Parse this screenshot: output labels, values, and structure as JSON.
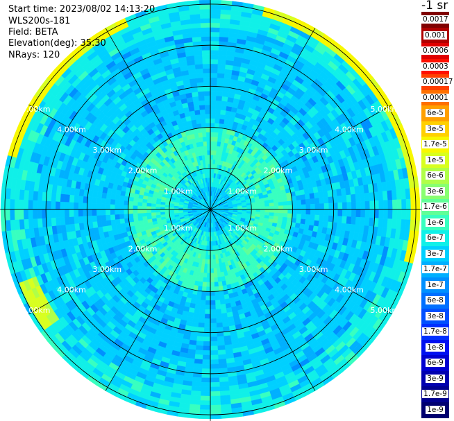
{
  "header": {
    "start_time": "Start time: 2023/08/02 14:13:20",
    "device": "WLS200s-181",
    "field": "Field: BETA",
    "elevation": "Elevation(deg): 35.30",
    "nrays": "NRays: 120"
  },
  "colorbar": {
    "unit": "-1 sr",
    "entries": [
      {
        "label": "0.0017",
        "color": "#800000"
      },
      {
        "label": "0.001",
        "color": "#b00000"
      },
      {
        "label": "0.0006",
        "color": "#e00000"
      },
      {
        "label": "0.0003",
        "color": "#ff1000"
      },
      {
        "label": "0.00017",
        "color": "#ff4000"
      },
      {
        "label": "0.0001",
        "color": "#ff7000"
      },
      {
        "label": "6e-5",
        "color": "#ffa000"
      },
      {
        "label": "3e-5",
        "color": "#ffd000"
      },
      {
        "label": "1.7e-5",
        "color": "#f8f800"
      },
      {
        "label": "1e-5",
        "color": "#d8ff20"
      },
      {
        "label": "6e-6",
        "color": "#b0ff48"
      },
      {
        "label": "3e-6",
        "color": "#88ff70"
      },
      {
        "label": "1.7e-6",
        "color": "#60ff98"
      },
      {
        "label": "1e-6",
        "color": "#38ffc0"
      },
      {
        "label": "6e-7",
        "color": "#10f0e8"
      },
      {
        "label": "3e-7",
        "color": "#00d0ff"
      },
      {
        "label": "1.7e-7",
        "color": "#00b0ff"
      },
      {
        "label": "1e-7",
        "color": "#0090ff"
      },
      {
        "label": "6e-8",
        "color": "#0070ff"
      },
      {
        "label": "3e-8",
        "color": "#0050ff"
      },
      {
        "label": "1.7e-8",
        "color": "#0030ff"
      },
      {
        "label": "1e-8",
        "color": "#0010f0"
      },
      {
        "label": "6e-9",
        "color": "#0000d0"
      },
      {
        "label": "3e-9",
        "color": "#0000b0"
      },
      {
        "label": "1.7e-9",
        "color": "#000090"
      },
      {
        "label": "1e-9",
        "color": "#000070"
      }
    ]
  },
  "chart_data": {
    "type": "heatmap",
    "projection": "polar",
    "grid": true,
    "range_rings_km": [
      1,
      2,
      3,
      4,
      5
    ],
    "range_labels": [
      "1.00km",
      "2.00km",
      "3.00km",
      "4.00km",
      "5.00km"
    ],
    "max_range_km": 5.1,
    "azimuth_gridlines_deg": [
      0,
      30,
      60,
      90,
      120,
      150,
      180,
      210,
      240,
      270,
      300,
      330
    ],
    "range_bins": 46,
    "nrays": 120,
    "typical_value": "3e-7 to 1e-6 sr-1",
    "bands": [
      {
        "range_km": [
          0.0,
          0.5
        ],
        "dominant": "3e-7"
      },
      {
        "range_km": [
          0.5,
          1.0
        ],
        "dominant": "6e-7"
      },
      {
        "range_km": [
          1.0,
          2.0
        ],
        "dominant": "1e-6"
      },
      {
        "range_km": [
          2.0,
          4.4
        ],
        "dominant": "3e-7"
      },
      {
        "range_km": [
          4.4,
          5.1
        ],
        "dominant": "6e-7"
      }
    ],
    "edge_highlights": [
      {
        "azimuth_deg": [
          15,
          105
        ],
        "range_km": [
          4.9,
          5.1
        ],
        "value": "1.7e-5"
      },
      {
        "azimuth_deg": [
          285,
          335
        ],
        "range_km": [
          4.9,
          5.1
        ],
        "value": "1.7e-5"
      },
      {
        "azimuth_deg": [
          235,
          250
        ],
        "range_km": [
          4.6,
          5.0
        ],
        "value": "1e-5"
      }
    ]
  }
}
